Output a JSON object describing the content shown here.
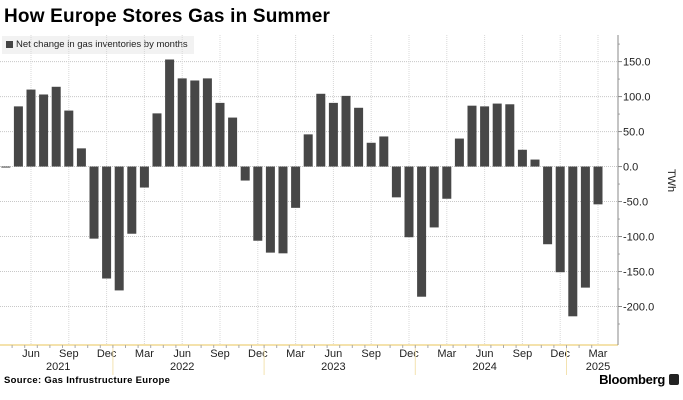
{
  "title": "How Europe Stores Gas in Summer",
  "source": "Source: Gas Infrustructure Europe",
  "brand": "Bloomberg",
  "chart_data": {
    "type": "bar",
    "title": "How Europe Stores Gas in Summer",
    "legend": [
      "Net change in gas inventories by months"
    ],
    "legend_position": "top-left",
    "ylabel": "TWh",
    "xlabel": "",
    "ylim": [
      -255,
      188
    ],
    "yticks": [
      150,
      100,
      50,
      0,
      -50,
      -100,
      -150,
      -200
    ],
    "ytick_labels": [
      "150.0",
      "100.0",
      "50.0",
      "0.0",
      "-50.0",
      "-100.0",
      "-150.0",
      "-200.0"
    ],
    "grid": true,
    "color": "#474747",
    "categories": [
      "Apr 2021",
      "May 2021",
      "Jun 2021",
      "Jul 2021",
      "Aug 2021",
      "Sep 2021",
      "Oct 2021",
      "Nov 2021",
      "Dec 2021",
      "Jan 2022",
      "Feb 2022",
      "Mar 2022",
      "Apr 2022",
      "May 2022",
      "Jun 2022",
      "Jul 2022",
      "Aug 2022",
      "Sep 2022",
      "Oct 2022",
      "Nov 2022",
      "Dec 2022",
      "Jan 2023",
      "Feb 2023",
      "Mar 2023",
      "Apr 2023",
      "May 2023",
      "Jun 2023",
      "Jul 2023",
      "Aug 2023",
      "Sep 2023",
      "Oct 2023",
      "Nov 2023",
      "Dec 2023",
      "Jan 2024",
      "Feb 2024",
      "Mar 2024",
      "Apr 2024",
      "May 2024",
      "Jun 2024",
      "Jul 2024",
      "Aug 2024",
      "Sep 2024",
      "Oct 2024",
      "Nov 2024",
      "Dec 2024",
      "Jan 2025",
      "Feb 2025",
      "Mar 2025"
    ],
    "values": [
      -1,
      86,
      110,
      103,
      114,
      80,
      26,
      -103,
      -160,
      -177,
      -96,
      -30,
      76,
      153,
      126,
      123,
      126,
      91,
      70,
      -20,
      -106,
      -123,
      -124,
      -59,
      46,
      104,
      91,
      101,
      84,
      34,
      43,
      -44,
      -101,
      -186,
      -87,
      -46,
      40,
      87,
      86,
      90,
      89,
      24,
      10,
      -111,
      -151,
      -214,
      -173,
      -54
    ],
    "xtick_labels": [
      {
        "month": 2,
        "label": "Jun"
      },
      {
        "month": 5,
        "label": "Sep"
      },
      {
        "month": 8,
        "label": "Dec"
      },
      {
        "month": 11,
        "label": "Mar"
      },
      {
        "month": 14,
        "label": "Jun"
      },
      {
        "month": 17,
        "label": "Sep"
      },
      {
        "month": 20,
        "label": "Dec"
      },
      {
        "month": 23,
        "label": "Mar"
      },
      {
        "month": 26,
        "label": "Jun"
      },
      {
        "month": 29,
        "label": "Sep"
      },
      {
        "month": 32,
        "label": "Dec"
      },
      {
        "month": 35,
        "label": "Mar"
      },
      {
        "month": 38,
        "label": "Jun"
      },
      {
        "month": 41,
        "label": "Sep"
      },
      {
        "month": 44,
        "label": "Dec"
      },
      {
        "month": 47,
        "label": "Mar"
      }
    ],
    "year_labels": [
      {
        "month": 4,
        "label": "2021"
      },
      {
        "month": 14,
        "label": "2022"
      },
      {
        "month": 26,
        "label": "2023"
      },
      {
        "month": 38,
        "label": "2024"
      },
      {
        "month": 47,
        "label": "2025"
      }
    ]
  }
}
